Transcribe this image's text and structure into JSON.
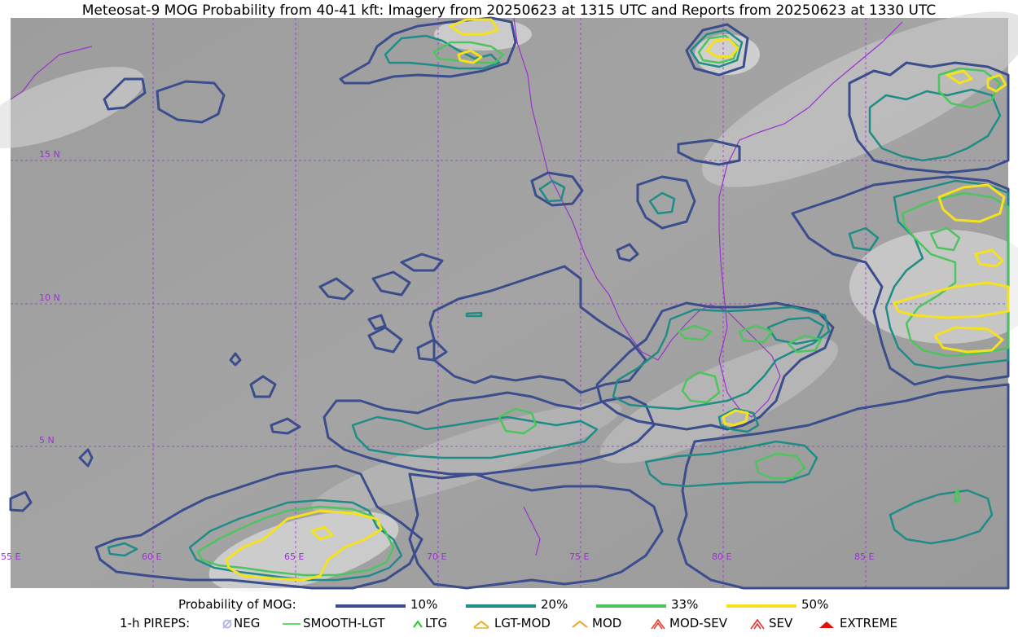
{
  "title": "Meteosat-9 MOG Probability from 40-41 kft: Imagery from 20250623 at 1315 UTC and Reports from 20250623 at 1330 UTC",
  "map": {
    "lat_labels": [
      "15 N",
      "10 N",
      "5 N"
    ],
    "lon_labels": [
      "55 E",
      "60 E",
      "65 E",
      "70 E",
      "75 E",
      "80 E",
      "85 E"
    ],
    "colors": {
      "p10": "#3b4d8c",
      "p20": "#1f8c87",
      "p33": "#4dc45e",
      "p50": "#f5e21e",
      "coast": "#9a33cc",
      "grid": "#9a33cc"
    }
  },
  "legend": {
    "prob_label": "Probability of MOG:",
    "prob_items": [
      {
        "label": "10%",
        "color": "#3b4d8c"
      },
      {
        "label": "20%",
        "color": "#1f8c87"
      },
      {
        "label": "33%",
        "color": "#4dc45e"
      },
      {
        "label": "50%",
        "color": "#f5e21e"
      }
    ],
    "pirep_label": "1-h PIREPS:",
    "pirep_items": [
      {
        "label": "NEG",
        "icon": "neg-icon",
        "color": "#b0b0f0"
      },
      {
        "label": "SMOOTH-LGT",
        "icon": "smooth-lgt-icon",
        "color": "#33cc33"
      },
      {
        "label": "LTG",
        "icon": "ltg-icon",
        "color": "#22cc22"
      },
      {
        "label": "LGT-MOD",
        "icon": "lgt-mod-icon",
        "color": "#e8b020"
      },
      {
        "label": "MOD",
        "icon": "mod-icon",
        "color": "#f0a020"
      },
      {
        "label": "MOD-SEV",
        "icon": "mod-sev-icon",
        "color": "#e84030"
      },
      {
        "label": "SEV",
        "icon": "sev-icon",
        "color": "#e83030"
      },
      {
        "label": "EXTREME",
        "icon": "extreme-icon",
        "color": "#e01010"
      }
    ]
  }
}
